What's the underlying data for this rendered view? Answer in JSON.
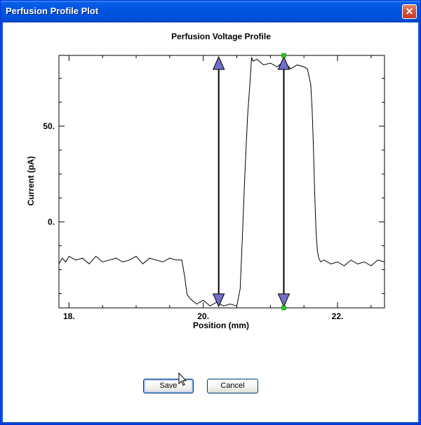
{
  "window": {
    "title": "Perfusion Profile Plot",
    "close_glyph": "✕"
  },
  "chart_data": {
    "type": "line",
    "title": "Perfusion Voltage Profile",
    "xlabel": "Position (mm)",
    "ylabel": "Current (pA)",
    "xlim": [
      17.85,
      22.7
    ],
    "ylim": [
      -45,
      87
    ],
    "x_ticks": [
      18,
      20,
      22
    ],
    "x_tick_labels": [
      "18.",
      "20.",
      "22."
    ],
    "y_ticks": [
      50,
      0
    ],
    "y_tick_labels": [
      "50.",
      "0."
    ],
    "grid": false,
    "line_color": "#000000",
    "cursor_color": "#7070c8",
    "cursors_x": [
      20.23,
      21.2
    ],
    "series": [
      {
        "x": [
          17.85,
          17.9,
          17.95,
          18.0,
          18.1,
          18.2,
          18.3,
          18.4,
          18.5,
          18.6,
          18.7,
          18.8,
          18.9,
          19.0,
          19.1,
          19.2,
          19.3,
          19.4,
          19.5,
          19.6,
          19.68,
          19.72,
          19.76,
          19.8,
          19.9,
          20.0,
          20.1,
          20.2,
          20.3,
          20.4,
          20.5,
          20.55,
          20.58,
          20.62,
          20.66,
          20.7,
          20.72,
          20.74,
          20.8,
          20.9,
          21.0,
          21.1,
          21.2,
          21.3,
          21.4,
          21.5,
          21.55,
          21.6,
          21.62,
          21.64,
          21.66,
          21.68,
          21.7,
          21.72,
          21.75,
          21.8,
          21.9,
          22.0,
          22.1,
          22.2,
          22.3,
          22.4,
          22.5,
          22.6,
          22.7
        ],
        "y": [
          -22,
          -19,
          -21,
          -18,
          -20,
          -19,
          -22,
          -18,
          -21,
          -20,
          -19,
          -21,
          -20,
          -18,
          -22,
          -19,
          -20,
          -21,
          -19,
          -20,
          -20,
          -28,
          -38,
          -40,
          -43,
          -41,
          -44,
          -42,
          -44,
          -43,
          -44,
          -35,
          -10,
          25,
          55,
          75,
          86,
          84,
          85,
          82,
          83,
          81,
          84,
          80,
          82,
          81,
          80,
          72,
          60,
          40,
          15,
          -5,
          -15,
          -19,
          -21,
          -20,
          -22,
          -21,
          -23,
          -20,
          -22,
          -21,
          -23,
          -20,
          -21
        ]
      }
    ]
  },
  "buttons": {
    "save": "Save",
    "cancel": "Cancel"
  }
}
